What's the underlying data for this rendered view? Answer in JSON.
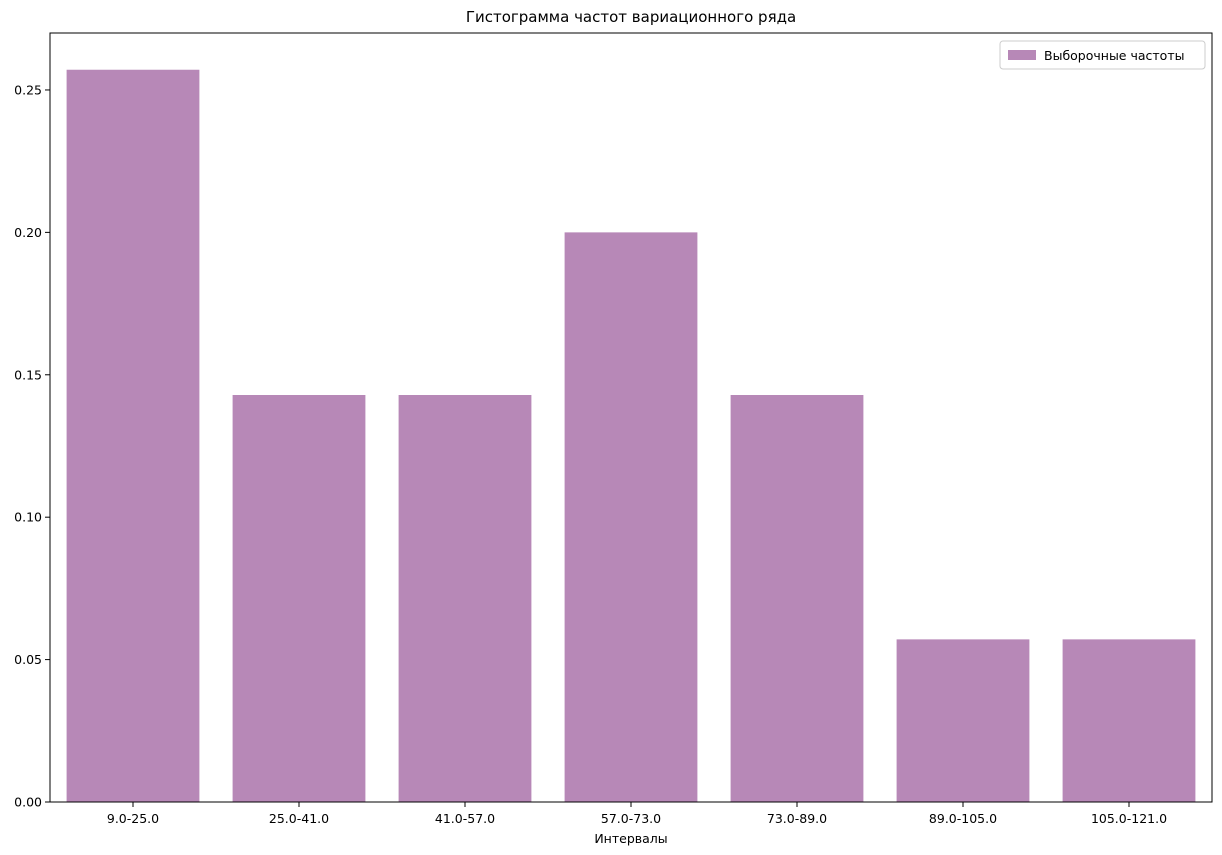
{
  "chart_data": {
    "type": "bar",
    "title": "Гистограмма частот вариационного ряда",
    "xlabel": "Интервалы",
    "ylabel": "",
    "categories": [
      "9.0-25.0",
      "25.0-41.0",
      "41.0-57.0",
      "57.0-73.0",
      "73.0-89.0",
      "89.0-105.0",
      "105.0-121.0"
    ],
    "series": [
      {
        "name": "Выборочные частоты",
        "values": [
          0.2571,
          0.1429,
          0.1429,
          0.2,
          0.1429,
          0.0571,
          0.0571
        ],
        "color": "#b788b7"
      }
    ],
    "ylim": [
      0,
      0.27
    ],
    "yticks": [
      0.0,
      0.05,
      0.1,
      0.15,
      0.2,
      0.25
    ],
    "ytick_labels": [
      "0.00",
      "0.05",
      "0.10",
      "0.15",
      "0.20",
      "0.25"
    ],
    "legend_position": "top-right",
    "grid": false
  }
}
